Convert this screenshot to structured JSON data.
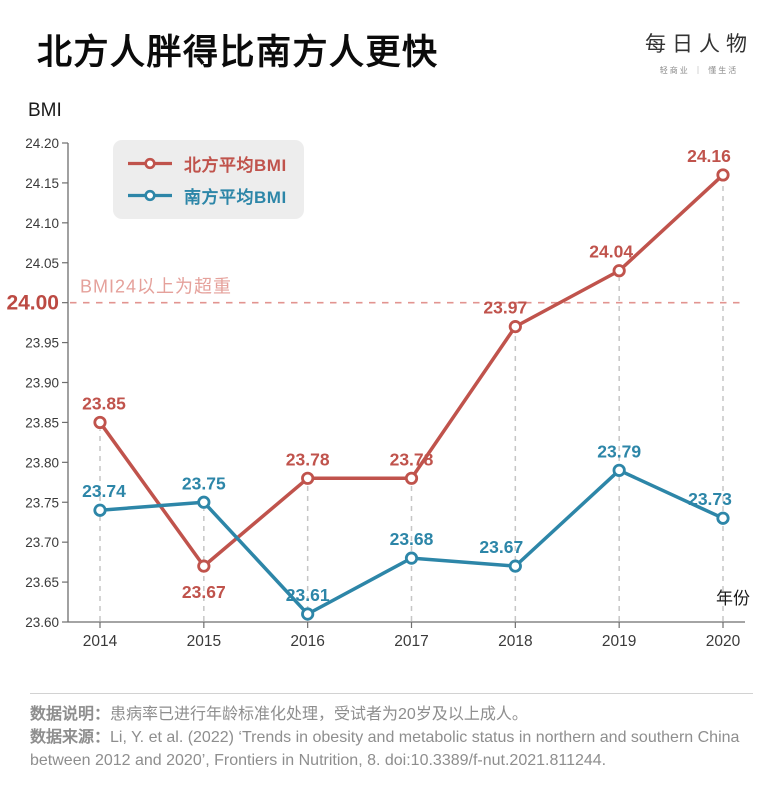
{
  "header": {
    "title": "北方人胖得比南方人更快",
    "brand": {
      "name": "每日人物",
      "tagline": "轻商业 ｜ 懂生活"
    }
  },
  "chart": {
    "y_axis_title": "BMI",
    "x_axis_title": "年份"
  },
  "colors": {
    "north_red": "#c0534c",
    "south_blue": "#2d86a8",
    "threshold_tick_red": "#bc4a43",
    "threshold_line_red": "#e29490",
    "threshold_text_red": "#e5a19b",
    "grid_gray": "#c6c6c6",
    "axis_gray": "#6e6e6e",
    "tick_text": "#3a3a3a"
  },
  "chart_data": {
    "type": "line",
    "x": [
      2014,
      2015,
      2016,
      2017,
      2018,
      2019,
      2020
    ],
    "series": [
      {
        "name": "北方平均BMI",
        "color": "#c0534c",
        "values": [
          23.85,
          23.67,
          23.78,
          23.78,
          23.97,
          24.04,
          24.16
        ]
      },
      {
        "name": "南方平均BMI",
        "color": "#2d86a8",
        "values": [
          23.74,
          23.75,
          23.61,
          23.68,
          23.67,
          23.79,
          23.73
        ]
      }
    ],
    "title": "北方人胖得比南方人更快",
    "xlabel": "年份",
    "ylabel": "BMI",
    "ylim": [
      23.6,
      24.2
    ],
    "ytick_step": 0.05,
    "threshold": {
      "value": 24.0,
      "label": "BMI24以上为超重"
    },
    "grid": "vertical-dashed-per-year",
    "legend_position": "top-left"
  },
  "footer": {
    "note_label": "数据说明：",
    "note": "患病率已进行年龄标准化处理，受试者为20岁及以上成人。",
    "source_label": "数据来源：",
    "source": "Li, Y. et al. (2022) ‘Trends in obesity and metabolic status in northern and southern China between 2012 and 2020’, Frontiers in Nutrition, 8. doi:10.3389/f-nut.2021.811244."
  }
}
